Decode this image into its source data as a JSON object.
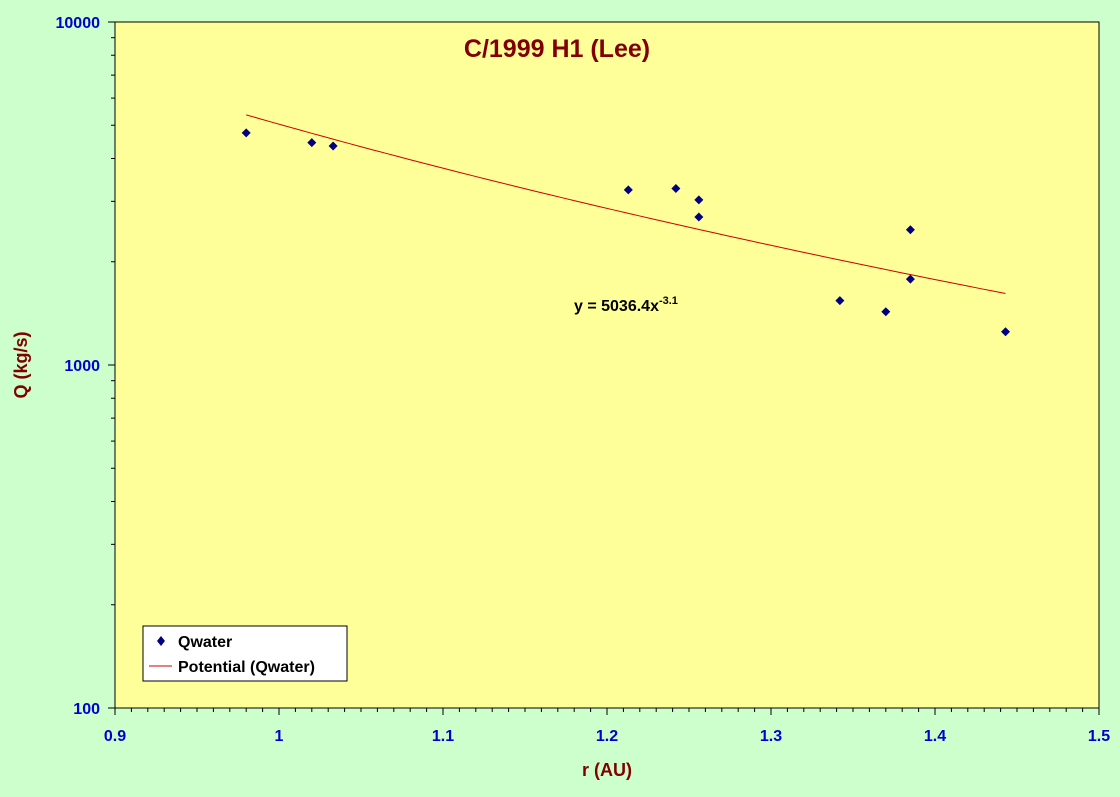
{
  "colors": {
    "background": "#ccffcc",
    "plot_area": "#ffff99",
    "axis_text": "#0000cc",
    "title_text": "#800000",
    "marker": "#000080",
    "trendline": "#cc0000"
  },
  "chart_data": {
    "type": "scatter",
    "title": "C/1999 H1 (Lee)",
    "xlabel": "r (AU)",
    "ylabel": "Q (kg/s)",
    "xlim": [
      0.9,
      1.5
    ],
    "ylim": [
      100,
      10000
    ],
    "y_scale": "log",
    "x_ticks": [
      0.9,
      1.0,
      1.1,
      1.2,
      1.3,
      1.4,
      1.5
    ],
    "x_tick_labels": [
      "0.9",
      "1",
      "1.1",
      "1.2",
      "1.3",
      "1.4",
      "1.5"
    ],
    "y_ticks": [
      100,
      1000,
      10000
    ],
    "y_tick_labels": [
      "100",
      "1000",
      "10000"
    ],
    "grid": false,
    "legend_position": "bottom-left",
    "series": [
      {
        "name": "Qwater",
        "marker": "diamond",
        "x": [
          0.98,
          1.02,
          1.033,
          1.213,
          1.242,
          1.256,
          1.256,
          1.385,
          1.385,
          1.342,
          1.37,
          1.443
        ],
        "y": [
          4750,
          4450,
          4350,
          3240,
          3270,
          3030,
          2700,
          2480,
          1780,
          1540,
          1430,
          1250
        ]
      },
      {
        "name": "Potential (Qwater)",
        "type": "trendline",
        "equation_label": "y = 5036.4x",
        "equation_exponent": "-3.1",
        "coefficient": 5036.4,
        "exponent": -3.1,
        "x_range": [
          0.98,
          1.443
        ]
      }
    ]
  }
}
